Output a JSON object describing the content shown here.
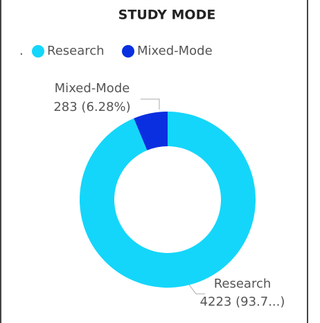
{
  "chart_data": {
    "type": "donut",
    "title": "STUDY MODE",
    "legend_title": ".",
    "categories": [
      "Research",
      "Mixed-Mode"
    ],
    "values": [
      4223,
      283
    ],
    "value_labels": [
      "4223 (93.7...)",
      "283 (6.28%)"
    ],
    "colors": [
      "#14d6fa",
      "#0a2fe0"
    ]
  }
}
